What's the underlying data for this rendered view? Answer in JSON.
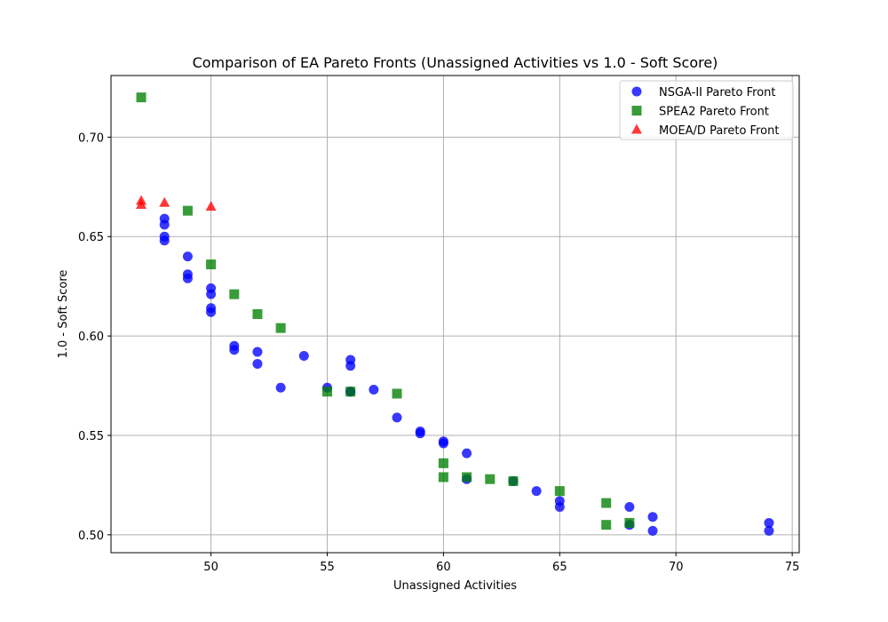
{
  "chart_data": {
    "type": "scatter",
    "title": "Comparison of EA Pareto Fronts (Unassigned Activities vs 1.0 - Soft Score)",
    "xlabel": "Unassigned Activities",
    "ylabel": "1.0 - Soft Score",
    "xlim": [
      45.7,
      75.3
    ],
    "ylim": [
      0.491,
      0.731
    ],
    "xticks": [
      50,
      55,
      60,
      65,
      70,
      75
    ],
    "yticks": [
      0.5,
      0.55,
      0.6,
      0.65,
      0.7
    ],
    "xtick_labels": [
      "50",
      "55",
      "60",
      "65",
      "70",
      "75"
    ],
    "ytick_labels": [
      "0.50",
      "0.55",
      "0.60",
      "0.65",
      "0.70"
    ],
    "grid": true,
    "legend_position": "top-right",
    "series": [
      {
        "name": "NSGA-II Pareto Front",
        "marker": "circle",
        "color": "#0000ff",
        "points": [
          [
            48,
            0.659
          ],
          [
            48,
            0.656
          ],
          [
            48,
            0.65
          ],
          [
            48,
            0.648
          ],
          [
            49,
            0.64
          ],
          [
            49,
            0.631
          ],
          [
            49,
            0.629
          ],
          [
            50,
            0.624
          ],
          [
            50,
            0.621
          ],
          [
            50,
            0.614
          ],
          [
            50,
            0.612
          ],
          [
            51,
            0.595
          ],
          [
            51,
            0.593
          ],
          [
            52,
            0.592
          ],
          [
            52,
            0.586
          ],
          [
            53,
            0.574
          ],
          [
            54,
            0.59
          ],
          [
            55,
            0.574
          ],
          [
            56,
            0.588
          ],
          [
            56,
            0.585
          ],
          [
            56,
            0.572
          ],
          [
            56,
            0.572
          ],
          [
            57,
            0.573
          ],
          [
            58,
            0.559
          ],
          [
            59,
            0.552
          ],
          [
            59,
            0.551
          ],
          [
            60,
            0.547
          ],
          [
            60,
            0.546
          ],
          [
            61,
            0.541
          ],
          [
            61,
            0.528
          ],
          [
            63,
            0.527
          ],
          [
            64,
            0.522
          ],
          [
            65,
            0.517
          ],
          [
            65,
            0.514
          ],
          [
            68,
            0.514
          ],
          [
            68,
            0.505
          ],
          [
            69,
            0.509
          ],
          [
            69,
            0.502
          ],
          [
            74,
            0.506
          ],
          [
            74,
            0.502
          ]
        ]
      },
      {
        "name": "SPEA2 Pareto Front",
        "marker": "square",
        "color": "#008000",
        "points": [
          [
            47,
            0.72
          ],
          [
            49,
            0.663
          ],
          [
            50,
            0.636
          ],
          [
            51,
            0.621
          ],
          [
            52,
            0.611
          ],
          [
            53,
            0.604
          ],
          [
            55,
            0.572
          ],
          [
            56,
            0.572
          ],
          [
            58,
            0.571
          ],
          [
            60,
            0.536
          ],
          [
            60,
            0.529
          ],
          [
            61,
            0.529
          ],
          [
            62,
            0.528
          ],
          [
            63,
            0.527
          ],
          [
            65,
            0.522
          ],
          [
            67,
            0.516
          ],
          [
            67,
            0.505
          ],
          [
            68,
            0.506
          ]
        ]
      },
      {
        "name": "MOEA/D Pareto Front",
        "marker": "triangle",
        "color": "#ff0000",
        "points": [
          [
            47,
            0.668
          ],
          [
            47,
            0.666
          ],
          [
            48,
            0.667
          ],
          [
            50,
            0.665
          ]
        ]
      }
    ]
  }
}
